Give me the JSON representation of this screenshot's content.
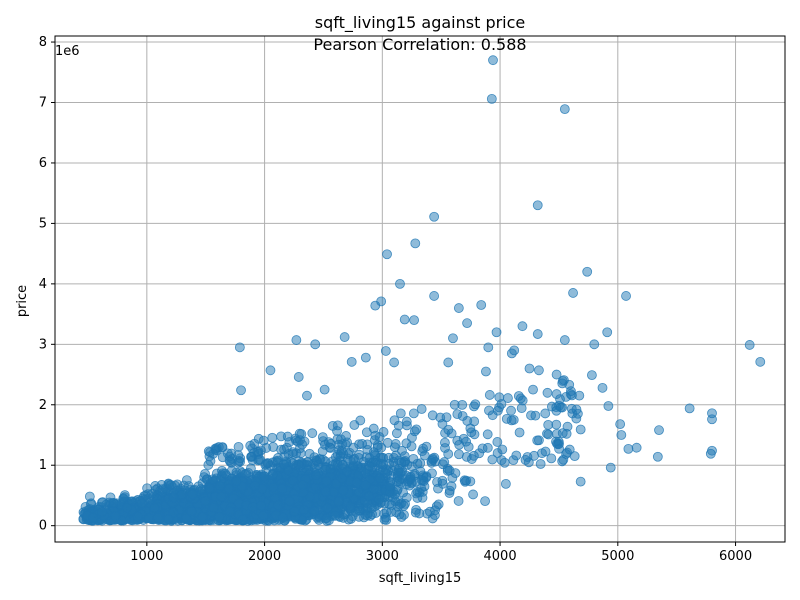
{
  "chart_data": {
    "type": "scatter",
    "title_line1": "sqft_living15 against price",
    "title_line2": "Pearson Correlation: 0.588",
    "xlabel": "sqft_living15",
    "ylabel": "price",
    "y_offset_text": "1e6",
    "xlim": [
      220,
      6420
    ],
    "ylim": [
      -270000,
      8100000
    ],
    "xticks": [
      1000,
      2000,
      3000,
      4000,
      5000,
      6000
    ],
    "xtick_labels": [
      "1000",
      "2000",
      "3000",
      "4000",
      "5000",
      "6000"
    ],
    "yticks": [
      0,
      1000000,
      2000000,
      3000000,
      4000000,
      5000000,
      6000000,
      7000000,
      8000000
    ],
    "ytick_labels": [
      "0",
      "1",
      "2",
      "3",
      "4",
      "5",
      "6",
      "7",
      "8"
    ],
    "grid": true,
    "marker_color": "#1f77b4",
    "marker_alpha": 0.5,
    "series": [
      {
        "outliers": [
          {
            "x": 3940,
            "y": 7700000
          },
          {
            "x": 3930,
            "y": 7060000
          },
          {
            "x": 4550,
            "y": 6890000
          },
          {
            "x": 4320,
            "y": 5300000
          },
          {
            "x": 3440,
            "y": 5110000
          },
          {
            "x": 3280,
            "y": 4670000
          },
          {
            "x": 3040,
            "y": 4490000
          },
          {
            "x": 4740,
            "y": 4200000
          },
          {
            "x": 3150,
            "y": 4000000
          },
          {
            "x": 4620,
            "y": 3850000
          },
          {
            "x": 3440,
            "y": 3800000
          },
          {
            "x": 5070,
            "y": 3800000
          },
          {
            "x": 2990,
            "y": 3710000
          },
          {
            "x": 2940,
            "y": 3640000
          },
          {
            "x": 3840,
            "y": 3650000
          },
          {
            "x": 3650,
            "y": 3600000
          },
          {
            "x": 3720,
            "y": 3350000
          },
          {
            "x": 4190,
            "y": 3300000
          },
          {
            "x": 4910,
            "y": 3200000
          },
          {
            "x": 3190,
            "y": 3410000
          },
          {
            "x": 3270,
            "y": 3400000
          },
          {
            "x": 2270,
            "y": 3070000
          },
          {
            "x": 2680,
            "y": 3120000
          },
          {
            "x": 2430,
            "y": 3000000
          },
          {
            "x": 1790,
            "y": 2950000
          },
          {
            "x": 6120,
            "y": 2990000
          },
          {
            "x": 6210,
            "y": 2710000
          },
          {
            "x": 4550,
            "y": 3070000
          },
          {
            "x": 4800,
            "y": 3000000
          },
          {
            "x": 3970,
            "y": 3200000
          },
          {
            "x": 4320,
            "y": 3170000
          },
          {
            "x": 3900,
            "y": 2950000
          },
          {
            "x": 4120,
            "y": 2900000
          },
          {
            "x": 2050,
            "y": 2570000
          },
          {
            "x": 2290,
            "y": 2460000
          },
          {
            "x": 1800,
            "y": 2240000
          },
          {
            "x": 4480,
            "y": 2500000
          },
          {
            "x": 4780,
            "y": 2490000
          },
          {
            "x": 4330,
            "y": 2570000
          },
          {
            "x": 4870,
            "y": 2280000
          },
          {
            "x": 5610,
            "y": 1940000
          },
          {
            "x": 5800,
            "y": 1860000
          },
          {
            "x": 5800,
            "y": 1760000
          },
          {
            "x": 5350,
            "y": 1580000
          },
          {
            "x": 5800,
            "y": 1240000
          },
          {
            "x": 5790,
            "y": 1190000
          },
          {
            "x": 5340,
            "y": 1140000
          },
          {
            "x": 5090,
            "y": 1270000
          },
          {
            "x": 4920,
            "y": 1980000
          },
          {
            "x": 4560,
            "y": 2130000
          },
          {
            "x": 4440,
            "y": 1970000
          },
          {
            "x": 5160,
            "y": 1290000
          },
          {
            "x": 5030,
            "y": 1500000
          },
          {
            "x": 5020,
            "y": 1680000
          },
          {
            "x": 4940,
            "y": 960000
          },
          {
            "x": 3600,
            "y": 3100000
          },
          {
            "x": 3560,
            "y": 2700000
          },
          {
            "x": 2740,
            "y": 2710000
          },
          {
            "x": 2860,
            "y": 2780000
          },
          {
            "x": 3030,
            "y": 2890000
          },
          {
            "x": 3100,
            "y": 2700000
          },
          {
            "x": 4100,
            "y": 2850000
          },
          {
            "x": 4250,
            "y": 2600000
          },
          {
            "x": 3880,
            "y": 2550000
          },
          {
            "x": 2510,
            "y": 2250000
          },
          {
            "x": 2360,
            "y": 2150000
          }
        ]
      }
    ]
  }
}
